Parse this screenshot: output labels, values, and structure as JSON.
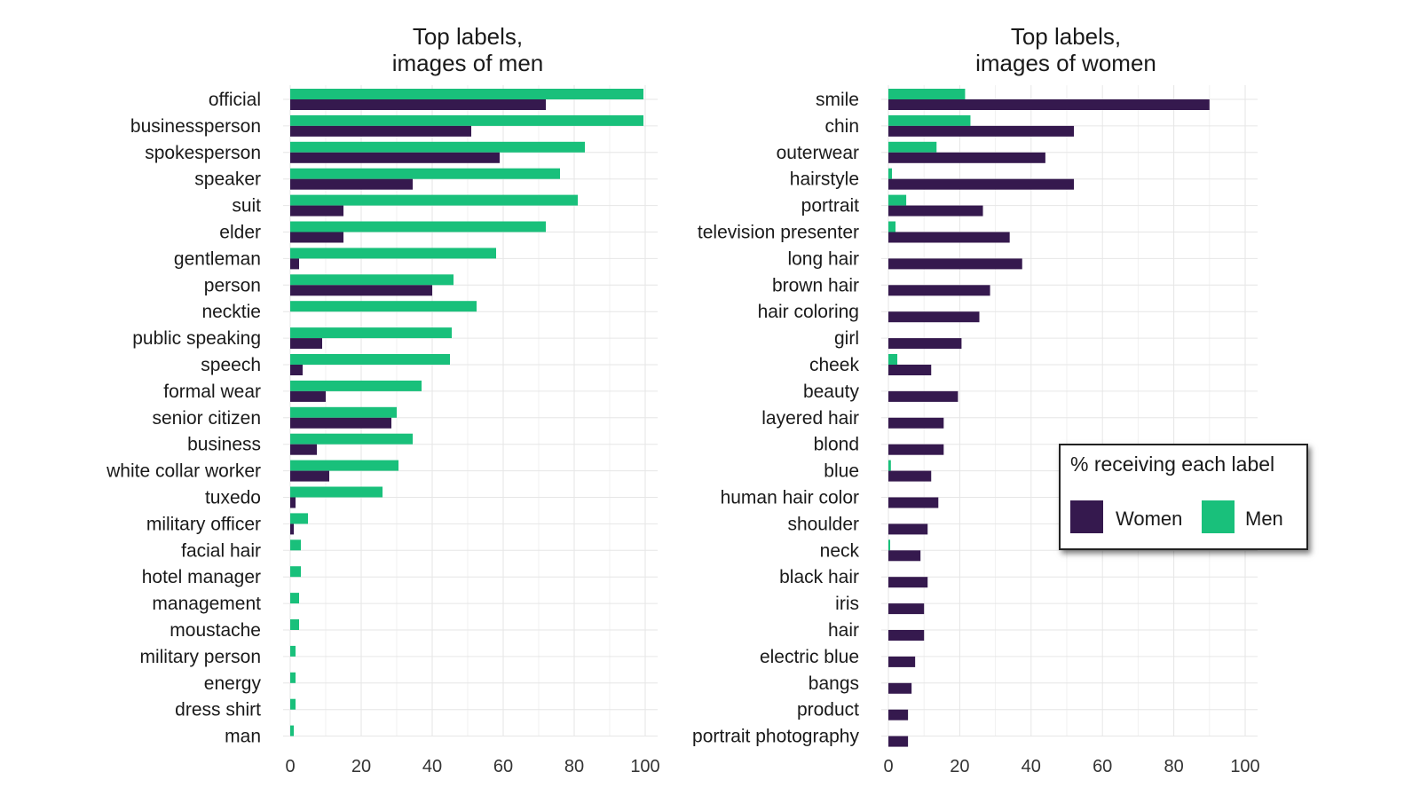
{
  "chart_data": [
    {
      "type": "bar",
      "orientation": "horizontal",
      "title": [
        "Top labels,",
        "images of men"
      ],
      "xlim": [
        0,
        100
      ],
      "x_ticks": [
        0,
        20,
        40,
        60,
        80,
        100
      ],
      "grid": true,
      "categories": [
        "official",
        "businessperson",
        "spokesperson",
        "speaker",
        "suit",
        "elder",
        "gentleman",
        "person",
        "necktie",
        "public speaking",
        "speech",
        "formal wear",
        "senior citizen",
        "business",
        "white collar worker",
        "tuxedo",
        "military officer",
        "facial hair",
        "hotel manager",
        "management",
        "moustache",
        "military person",
        "energy",
        "dress shirt",
        "man"
      ],
      "series": [
        {
          "name": "Men",
          "color": "#19c07b",
          "values": [
            99.5,
            99.5,
            83,
            76,
            81,
            72,
            58,
            46,
            52.5,
            45.5,
            45,
            37,
            30,
            34.5,
            30.5,
            26,
            5,
            3,
            3,
            2.5,
            2.5,
            1.5,
            1.5,
            1.5,
            1
          ]
        },
        {
          "name": "Women",
          "color": "#35194e",
          "values": [
            72,
            51,
            59,
            34.5,
            15,
            15,
            2.5,
            40,
            0,
            9,
            3.5,
            10,
            28.5,
            7.5,
            11,
            1.5,
            1,
            0,
            0,
            0,
            0,
            0,
            0,
            0,
            0
          ]
        }
      ]
    },
    {
      "type": "bar",
      "orientation": "horizontal",
      "title": [
        "Top labels,",
        "images of women"
      ],
      "xlim": [
        0,
        100
      ],
      "x_ticks": [
        0,
        20,
        40,
        60,
        80,
        100
      ],
      "grid": true,
      "categories": [
        "smile",
        "chin",
        "outerwear",
        "hairstyle",
        "portrait",
        "television presenter",
        "long hair",
        "brown hair",
        "hair coloring",
        "girl",
        "cheek",
        "beauty",
        "layered hair",
        "blond",
        "blue",
        "human hair color",
        "shoulder",
        "neck",
        "black hair",
        "iris",
        "hair",
        "electric blue",
        "bangs",
        "product",
        "portrait photography"
      ],
      "series": [
        {
          "name": "Men",
          "color": "#19c07b",
          "values": [
            21.5,
            23,
            13.5,
            1,
            5,
            2,
            0,
            0,
            0,
            0,
            2.5,
            0,
            0,
            0,
            0.7,
            0,
            0,
            0.5,
            0,
            0,
            0,
            0,
            0,
            0,
            0
          ]
        },
        {
          "name": "Women",
          "color": "#35194e",
          "values": [
            90,
            52,
            44,
            52,
            26.5,
            34,
            37.5,
            28.5,
            25.5,
            20.5,
            12,
            19.5,
            15.5,
            15.5,
            12,
            14,
            11,
            9,
            11,
            10,
            10,
            7.5,
            6.5,
            5.5,
            5.5
          ]
        }
      ]
    }
  ],
  "legend": {
    "title": "% receiving each label",
    "placement": "right",
    "items": [
      {
        "label": "Women",
        "color": "#35194e"
      },
      {
        "label": "Men",
        "color": "#19c07b"
      }
    ]
  }
}
